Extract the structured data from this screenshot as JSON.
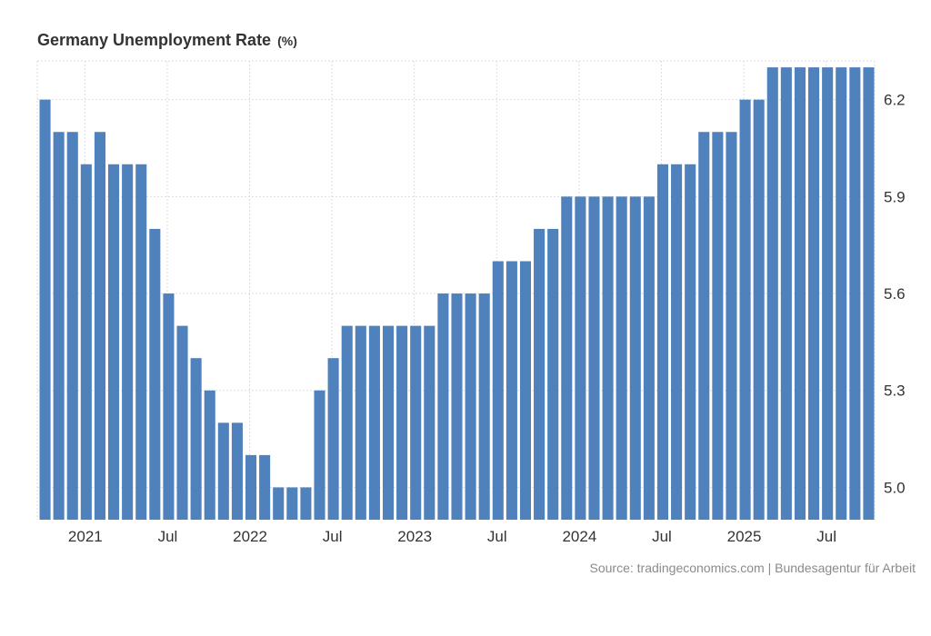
{
  "chart_data": {
    "type": "bar",
    "title": "Germany Unemployment Rate",
    "unit": "(%)",
    "xlabel": "",
    "ylabel": "",
    "ylim": [
      4.9,
      6.32
    ],
    "yticks": [
      5.0,
      5.3,
      5.6,
      5.9,
      6.2
    ],
    "ytick_labels": [
      "5.0",
      "5.3",
      "5.6",
      "5.9",
      "6.2"
    ],
    "xtick_labels": [
      {
        "label": "2021",
        "index": 3
      },
      {
        "label": "Jul",
        "index": 9
      },
      {
        "label": "2022",
        "index": 15
      },
      {
        "label": "Jul",
        "index": 21
      },
      {
        "label": "2023",
        "index": 27
      },
      {
        "label": "Jul",
        "index": 33
      },
      {
        "label": "2024",
        "index": 39
      },
      {
        "label": "Jul",
        "index": 45
      },
      {
        "label": "2025",
        "index": 51
      },
      {
        "label": "Jul",
        "index": 57
      }
    ],
    "categories": [
      "Oct 2020",
      "Nov 2020",
      "Dec 2020",
      "Jan 2021",
      "Feb 2021",
      "Mar 2021",
      "Apr 2021",
      "May 2021",
      "Jun 2021",
      "Jul 2021",
      "Aug 2021",
      "Sep 2021",
      "Oct 2021",
      "Nov 2021",
      "Dec 2021",
      "Jan 2022",
      "Feb 2022",
      "Mar 2022",
      "Apr 2022",
      "May 2022",
      "Jun 2022",
      "Jul 2022",
      "Aug 2022",
      "Sep 2022",
      "Oct 2022",
      "Nov 2022",
      "Dec 2022",
      "Jan 2023",
      "Feb 2023",
      "Mar 2023",
      "Apr 2023",
      "May 2023",
      "Jun 2023",
      "Jul 2023",
      "Aug 2023",
      "Sep 2023",
      "Oct 2023",
      "Nov 2023",
      "Dec 2023",
      "Jan 2024",
      "Feb 2024",
      "Mar 2024",
      "Apr 2024",
      "May 2024",
      "Jun 2024",
      "Jul 2024",
      "Aug 2024",
      "Sep 2024",
      "Oct 2024",
      "Nov 2024",
      "Dec 2024",
      "Jan 2025",
      "Feb 2025",
      "Mar 2025",
      "Apr 2025",
      "May 2025",
      "Jun 2025",
      "Jul 2025",
      "Aug 2025",
      "Sep 2025",
      "Oct 2025"
    ],
    "values": [
      6.2,
      6.1,
      6.1,
      6.0,
      6.1,
      6.0,
      6.0,
      6.0,
      5.8,
      5.6,
      5.5,
      5.4,
      5.3,
      5.2,
      5.2,
      5.1,
      5.1,
      5.0,
      5.0,
      5.0,
      5.3,
      5.4,
      5.5,
      5.5,
      5.5,
      5.5,
      5.5,
      5.5,
      5.5,
      5.6,
      5.6,
      5.6,
      5.6,
      5.7,
      5.7,
      5.7,
      5.8,
      5.8,
      5.9,
      5.9,
      5.9,
      5.9,
      5.9,
      5.9,
      5.9,
      6.0,
      6.0,
      6.0,
      6.1,
      6.1,
      6.1,
      6.2,
      6.2,
      6.3,
      6.3,
      6.3,
      6.3,
      6.3,
      6.3,
      6.3,
      6.3
    ],
    "bar_color": "#4f81bd",
    "grid_color": "#dddddd",
    "grid": true
  },
  "source": "Source: tradingeconomics.com | Bundesagentur für Arbeit"
}
